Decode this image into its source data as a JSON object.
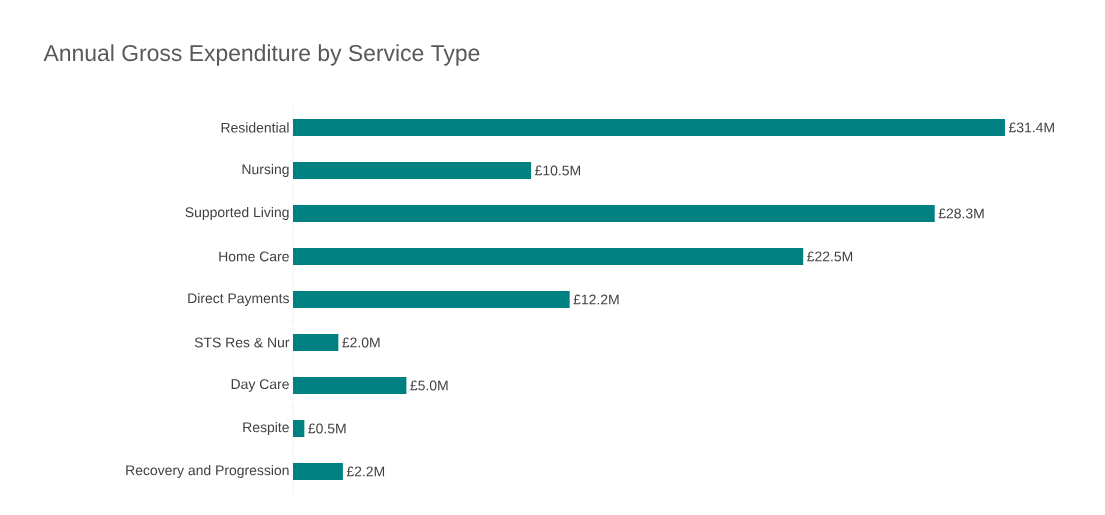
{
  "chart_data": {
    "type": "bar",
    "orientation": "horizontal",
    "title": "Annual Gross Expenditure by Service Type",
    "categories": [
      "Residential",
      "Nursing",
      "Supported Living",
      "Home Care",
      "Direct Payments",
      "STS Res & Nur",
      "Day Care",
      "Respite",
      "Recovery and Progression"
    ],
    "values": [
      31.4,
      10.5,
      28.3,
      22.5,
      12.2,
      2.0,
      5.0,
      0.5,
      2.2
    ],
    "value_labels": [
      "£31.4M",
      "£10.5M",
      "£28.3M",
      "£22.5M",
      "£12.2M",
      "£2.0M",
      "£5.0M",
      "£0.5M",
      "£2.2M"
    ],
    "color": "#008080"
  }
}
